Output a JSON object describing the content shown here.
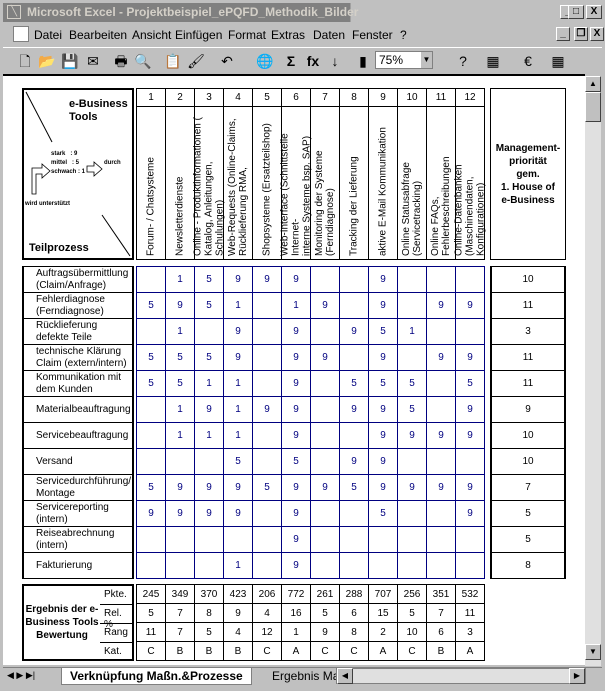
{
  "window": {
    "title": "Microsoft Excel - Projektbeispiel_ePQFD_Methodik_Bilder",
    "app_icon": "excel-icon",
    "controls": [
      "_",
      "□",
      "X"
    ]
  },
  "menu": {
    "items": [
      "Datei",
      "Bearbeiten",
      "Ansicht",
      "Einfügen",
      "Format",
      "Extras",
      "Daten",
      "Fenster",
      "?"
    ],
    "doc_controls": [
      "_",
      "❐",
      "X"
    ]
  },
  "toolbar": {
    "zoom": "75%",
    "icons": [
      "new-icon",
      "open-icon",
      "save-icon",
      "mail-icon",
      "print-icon",
      "print-preview-icon",
      "paste-icon",
      "format-painter-icon",
      "undo-icon",
      "hyperlink-icon",
      "autosum-icon",
      "function-icon",
      "sort-icon",
      "chart-icon",
      "help-icon",
      "borders-icon",
      "euro-icon",
      "fill-icon"
    ]
  },
  "matrix": {
    "corner": {
      "title1": "e-Business",
      "title2": "Tools",
      "legend": [
        "stark   : 9",
        "mittel   : 5",
        "schwach : 1"
      ],
      "durch": "durch",
      "wird": "wird unterstützt",
      "teilprozess": "Teilprozess"
    },
    "tool_numbers": [
      "1",
      "2",
      "3",
      "4",
      "5",
      "6",
      "7",
      "8",
      "9",
      "10",
      "11",
      "12"
    ],
    "tools": [
      "Forum- / Chatsysteme",
      "Newsletterdienste",
      "Online - Produktinformationen (\nKatalog, Anleitungen, Schulungen)",
      "Web-Requests (Online-Claims,\nRücklieferung RMA,",
      "Shopsysteme (Ersatzteilshop)",
      "Web-Interface (Schnittstelle Internet-\ninterne Systeme bsp. SAP)",
      "Monitoring der Systeme\n(Ferndiagnose)",
      "Tracking der Lieferung",
      "aktive E-Mail Kommunikation",
      "Online Statusabfrage\n(Servicetracking)",
      "Online FAQs, Fehlerbeschreibungen",
      "Online-Datenbanken\n(Maschinendaten, Konfigurationen)"
    ],
    "priority_header": "Management-\npriorität\ngem.\n1. House of\ne-Business",
    "rows": [
      {
        "label": "Auftragsübermittlung (Claim/Anfrage)",
        "values": [
          "",
          "1",
          "5",
          "9",
          "9",
          "9",
          "",
          "",
          "9",
          "",
          "",
          ""
        ],
        "priority": "10"
      },
      {
        "label": "Fehlerdiagnose (Ferndiagnose)",
        "values": [
          "5",
          "9",
          "5",
          "1",
          "",
          "1",
          "9",
          "",
          "9",
          "",
          "9",
          "9"
        ],
        "priority": "11"
      },
      {
        "label": "Rücklieferung defekte Teile",
        "values": [
          "",
          "1",
          "",
          "9",
          "",
          "9",
          "",
          "9",
          "5",
          "1",
          "",
          ""
        ],
        "priority": "3"
      },
      {
        "label": "technische Klärung Claim (extern/intern)",
        "values": [
          "5",
          "5",
          "5",
          "9",
          "",
          "9",
          "9",
          "",
          "9",
          "",
          "9",
          "9"
        ],
        "priority": "11"
      },
      {
        "label": "Kommunikation mit dem Kunden",
        "values": [
          "5",
          "5",
          "1",
          "1",
          "",
          "9",
          "",
          "5",
          "5",
          "5",
          "",
          "5"
        ],
        "priority": "11"
      },
      {
        "label": "Materialbeauftragung",
        "values": [
          "",
          "1",
          "9",
          "1",
          "9",
          "9",
          "",
          "9",
          "9",
          "5",
          "",
          "9"
        ],
        "priority": "9"
      },
      {
        "label": "Servicebeauftragung",
        "values": [
          "",
          "1",
          "1",
          "1",
          "",
          "9",
          "",
          "",
          "9",
          "9",
          "9",
          "9"
        ],
        "priority": "10"
      },
      {
        "label": "Versand",
        "values": [
          "",
          "",
          "",
          "5",
          "",
          "5",
          "",
          "9",
          "9",
          "",
          "",
          ""
        ],
        "priority": "10"
      },
      {
        "label": "Servicedurchführung/ Montage",
        "values": [
          "5",
          "9",
          "9",
          "9",
          "5",
          "9",
          "9",
          "5",
          "9",
          "9",
          "9",
          "9"
        ],
        "priority": "7"
      },
      {
        "label": "Servicereporting (intern)",
        "values": [
          "9",
          "9",
          "9",
          "9",
          "",
          "9",
          "",
          "",
          "5",
          "",
          "",
          "9"
        ],
        "priority": "5"
      },
      {
        "label": "Reiseabrechnung (intern)",
        "values": [
          "",
          "",
          "",
          "",
          "",
          "9",
          "",
          "",
          "",
          "",
          "",
          ""
        ],
        "priority": "5"
      },
      {
        "label": "Fakturierung",
        "values": [
          "",
          "",
          "",
          "1",
          "",
          "9",
          "",
          "",
          "",
          "",
          "",
          ""
        ],
        "priority": "8"
      }
    ]
  },
  "results": {
    "title": "Ergebnis der e-Business Tools Bewertung",
    "rows": [
      {
        "label": "Pkte.",
        "values": [
          "245",
          "349",
          "370",
          "423",
          "206",
          "772",
          "261",
          "288",
          "707",
          "256",
          "351",
          "532"
        ]
      },
      {
        "label": "Rel. %",
        "values": [
          "5",
          "7",
          "8",
          "9",
          "4",
          "16",
          "5",
          "6",
          "15",
          "5",
          "7",
          "11"
        ]
      },
      {
        "label": "Rang",
        "values": [
          "11",
          "7",
          "5",
          "4",
          "12",
          "1",
          "9",
          "8",
          "2",
          "10",
          "6",
          "3"
        ]
      },
      {
        "label": "Kat.",
        "values": [
          "C",
          "B",
          "B",
          "B",
          "C",
          "A",
          "C",
          "C",
          "A",
          "C",
          "B",
          "A"
        ]
      }
    ]
  },
  "sheet_tabs": {
    "active": "Verknüpfung Maßn.&Prozesse",
    "other": "Ergebnis Maßnahr"
  },
  "colors": {
    "grid": "#000080",
    "title_inactive": "#808080",
    "chrome": "#c0c0c0"
  }
}
